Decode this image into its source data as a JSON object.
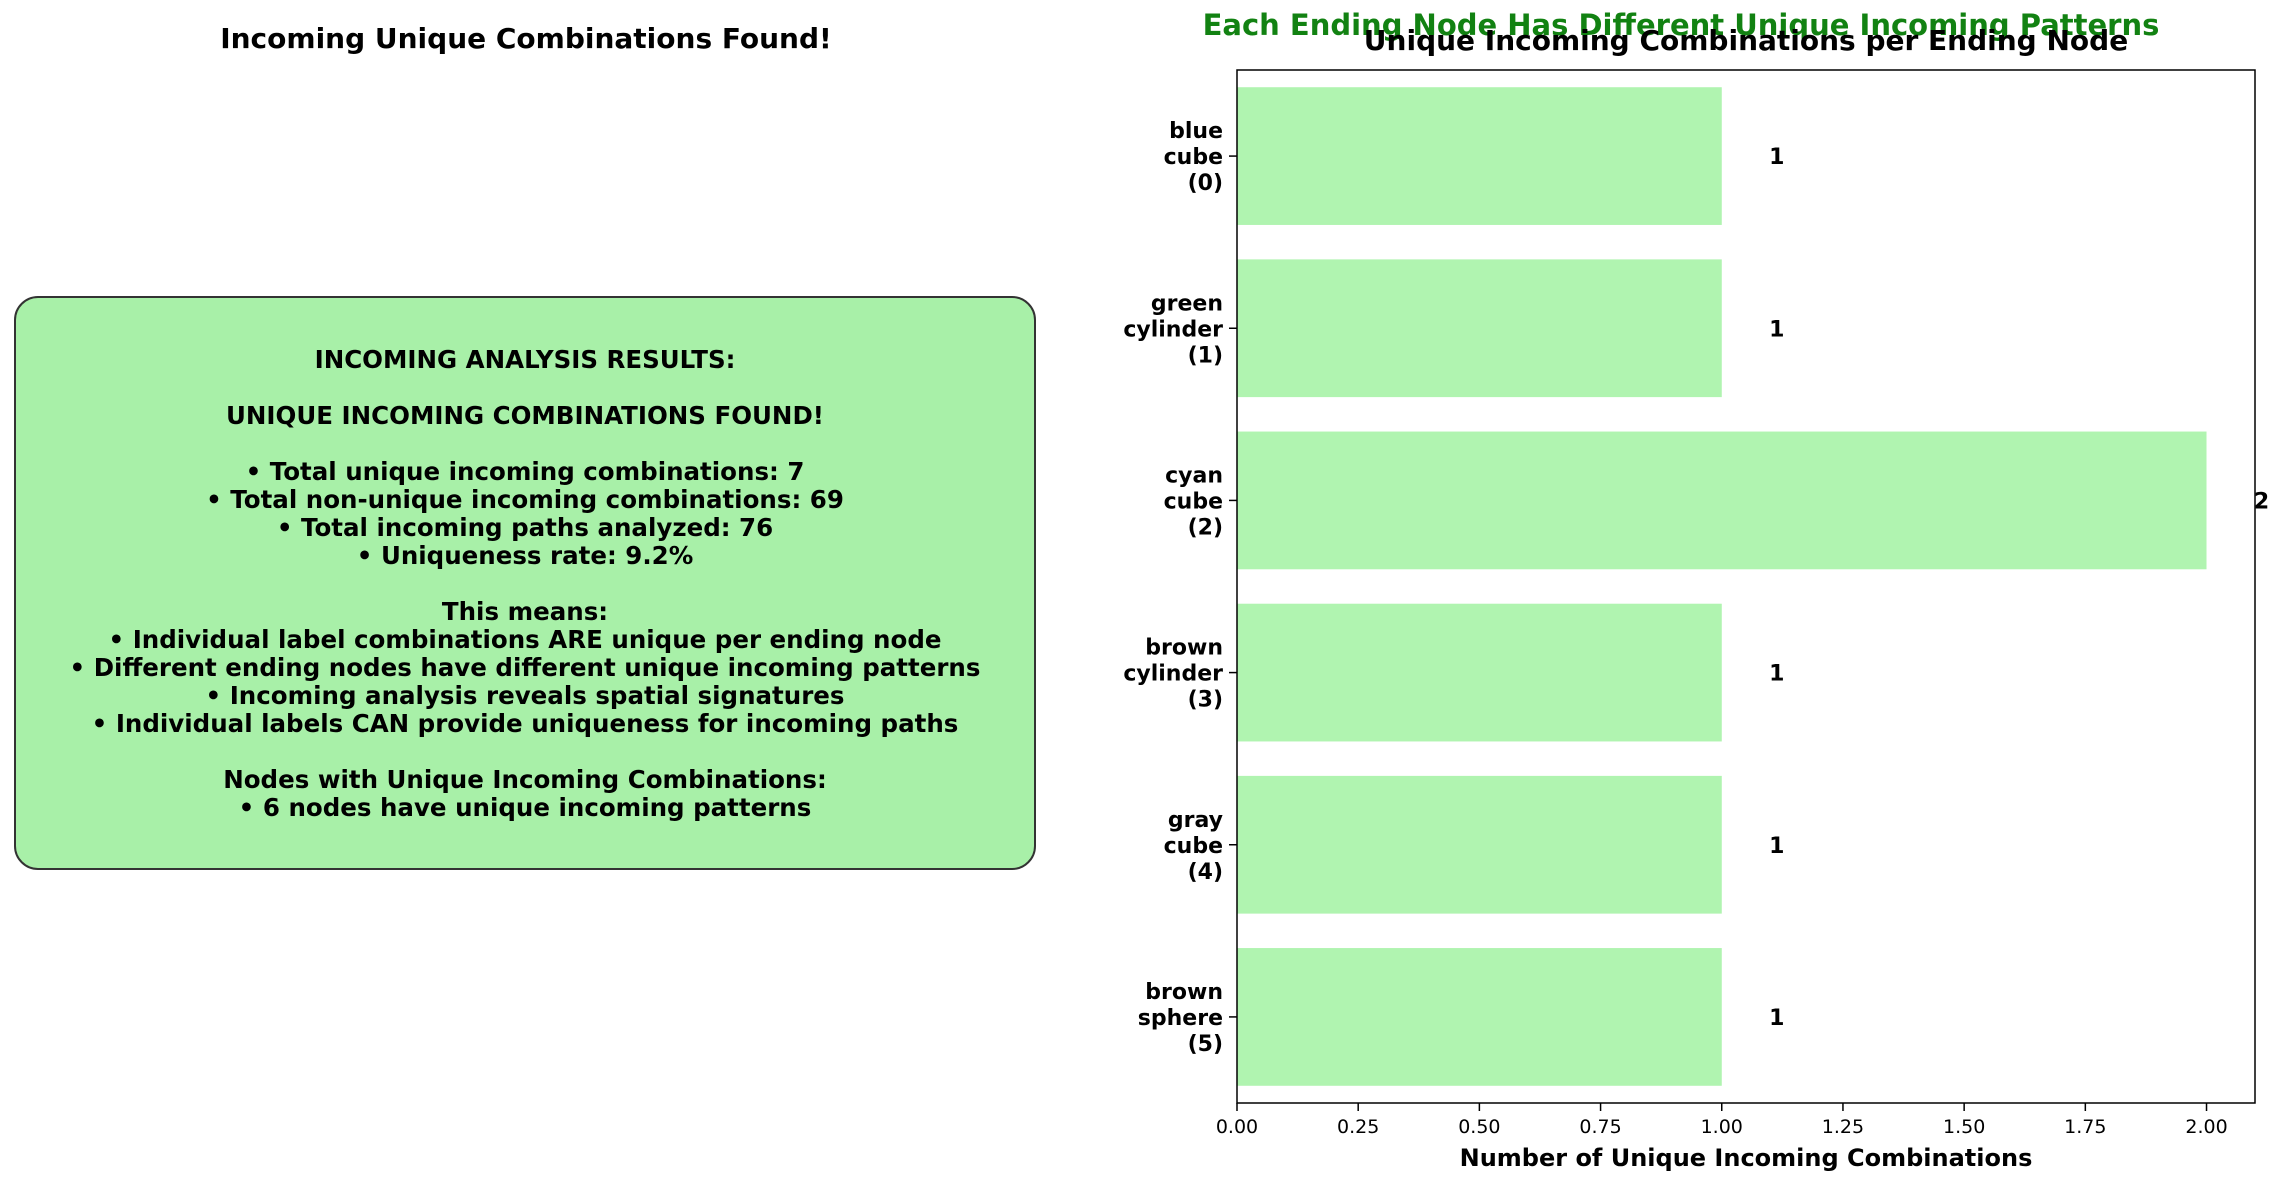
{
  "left_panel": {
    "title": "Incoming Unique Combinations Found!",
    "box_lines": [
      "INCOMING ANALYSIS RESULTS:",
      "",
      "UNIQUE INCOMING COMBINATIONS FOUND!",
      "",
      "• Total unique incoming combinations: 7",
      "• Total non-unique incoming combinations: 69",
      "• Total incoming paths analyzed: 76",
      "• Uniqueness rate: 9.2%",
      "",
      "This means:",
      "• Individual label combinations ARE unique per ending node",
      "• Different ending nodes have different unique incoming patterns",
      "• Incoming analysis reveals spatial signatures",
      "• Individual labels CAN provide uniqueness for incoming paths",
      "",
      "Nodes with Unique Incoming Combinations:",
      "• 6 nodes have unique incoming patterns"
    ],
    "box_color": "#a8f0a8"
  },
  "suptitle": "Each Ending Node Has Different Unique Incoming Patterns",
  "suptitle_color": "#128212",
  "chart_data": {
    "type": "bar",
    "orientation": "horizontal",
    "title": "Unique Incoming Combinations per Ending Node",
    "xlabel": "Number of Unique Incoming Combinations",
    "ylabel": "",
    "categories": [
      [
        "blue",
        "cube",
        "(0)"
      ],
      [
        "green",
        "cylinder",
        "(1)"
      ],
      [
        "cyan",
        "cube",
        "(2)"
      ],
      [
        "brown",
        "cylinder",
        "(3)"
      ],
      [
        "gray",
        "cube",
        "(4)"
      ],
      [
        "brown",
        "sphere",
        "(5)"
      ]
    ],
    "values": [
      1,
      1,
      2,
      1,
      1,
      1
    ],
    "value_labels": [
      "1",
      "1",
      "2",
      "1",
      "1",
      "1"
    ],
    "xlim": [
      0,
      2.1
    ],
    "xticks": [
      "0.00",
      "0.25",
      "0.50",
      "0.75",
      "1.00",
      "1.25",
      "1.50",
      "1.75",
      "2.00"
    ],
    "bar_color": "#b0f4b0",
    "grid": false
  }
}
